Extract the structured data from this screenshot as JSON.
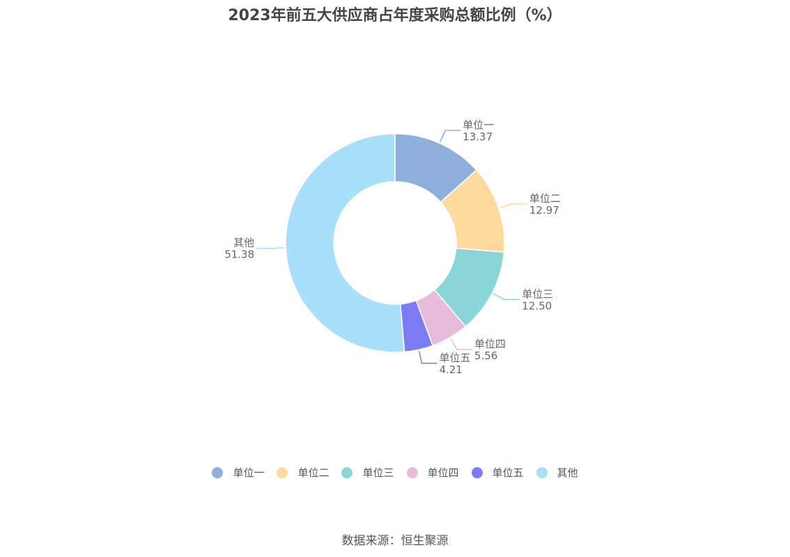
{
  "chart_data": {
    "type": "pie",
    "title": "2023年前五大供应商占年度采购总额比例（%）",
    "categories": [
      "单位一",
      "单位二",
      "单位三",
      "单位四",
      "单位五",
      "其他"
    ],
    "values": [
      13.37,
      12.97,
      12.5,
      5.56,
      4.21,
      51.38
    ],
    "value_labels": [
      "13.37",
      "12.97",
      "12.50",
      "5.56",
      "4.21",
      "51.38"
    ],
    "colors": [
      "#8eaedb",
      "#ffda9e",
      "#89d5d8",
      "#e8bbdc",
      "#7b7cf3",
      "#a8dffa"
    ],
    "donut": true,
    "legend_position": "bottom"
  },
  "footer": {
    "source": "数据来源：恒生聚源"
  }
}
